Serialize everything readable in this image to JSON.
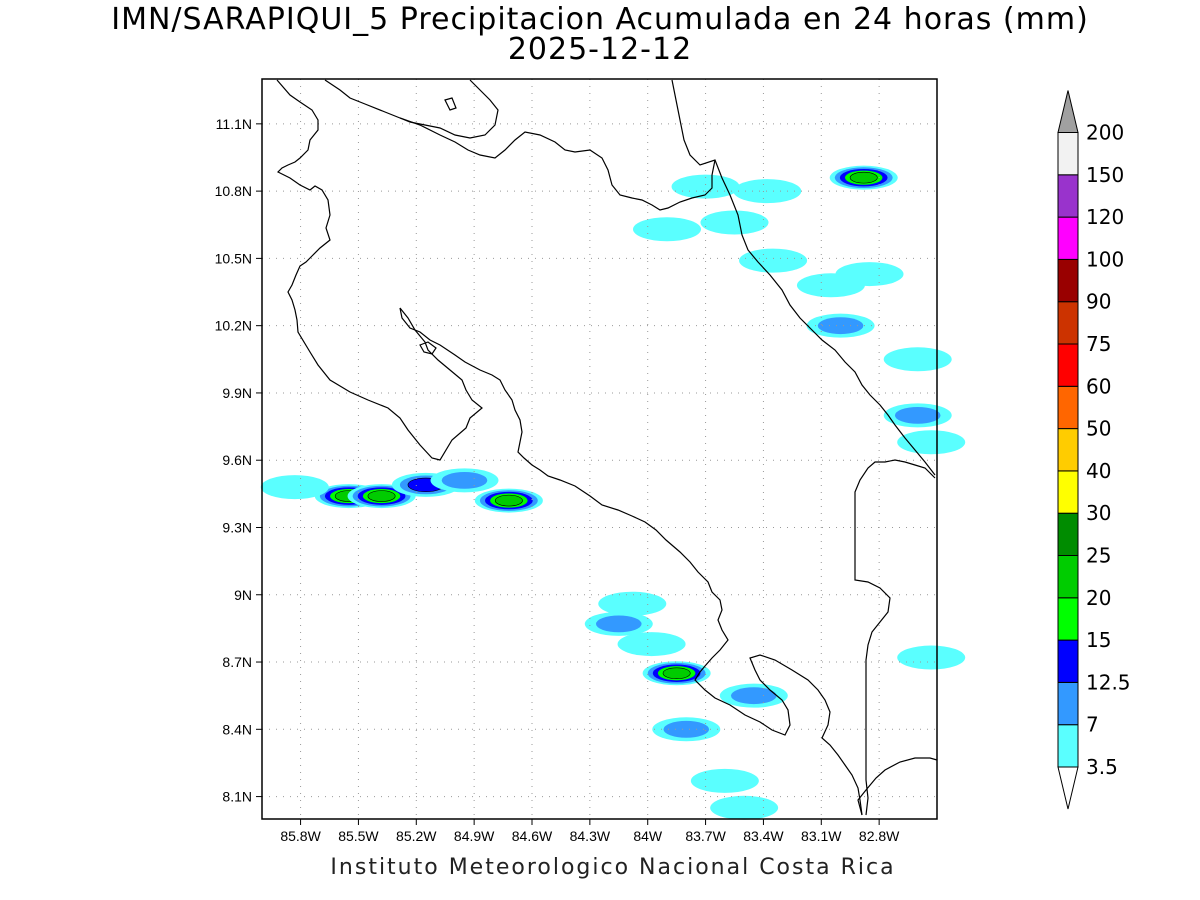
{
  "title": {
    "line1": "IMN/SARAPIQUI_5 Precipitacion Acumulada en 24 horas (mm)",
    "line2": "2025-12-12"
  },
  "footer": "Instituto Meteorologico Nacional Costa Rica",
  "map": {
    "lon_range": [
      -86.0,
      -82.5
    ],
    "lat_range": [
      8.0,
      11.3
    ],
    "lon_ticks": [
      {
        "value": -85.8,
        "label": "85.8W"
      },
      {
        "value": -85.5,
        "label": "85.5W"
      },
      {
        "value": -85.2,
        "label": "85.2W"
      },
      {
        "value": -84.9,
        "label": "84.9W"
      },
      {
        "value": -84.6,
        "label": "84.6W"
      },
      {
        "value": -84.3,
        "label": "84.3W"
      },
      {
        "value": -84.0,
        "label": "84W"
      },
      {
        "value": -83.7,
        "label": "83.7W"
      },
      {
        "value": -83.4,
        "label": "83.4W"
      },
      {
        "value": -83.1,
        "label": "83.1W"
      },
      {
        "value": -82.8,
        "label": "82.8W"
      }
    ],
    "lat_ticks": [
      {
        "value": 11.1,
        "label": "11.1N"
      },
      {
        "value": 10.8,
        "label": "10.8N"
      },
      {
        "value": 10.5,
        "label": "10.5N"
      },
      {
        "value": 10.2,
        "label": "10.2N"
      },
      {
        "value": 9.9,
        "label": "9.9N"
      },
      {
        "value": 9.6,
        "label": "9.6N"
      },
      {
        "value": 9.3,
        "label": "9.3N"
      },
      {
        "value": 9.0,
        "label": "9N"
      },
      {
        "value": 8.7,
        "label": "8.7N"
      },
      {
        "value": 8.4,
        "label": "8.4N"
      },
      {
        "value": 8.1,
        "label": "8.1N"
      }
    ],
    "grid": "dotted",
    "coastline_color": "#000000"
  },
  "colorbar": {
    "levels": [
      {
        "label": "3.5",
        "color": "#5affff"
      },
      {
        "label": "7",
        "color": "#3399ff"
      },
      {
        "label": "12.5",
        "color": "#0000ff"
      },
      {
        "label": "15",
        "color": "#00ff00"
      },
      {
        "label": "20",
        "color": "#00cc00"
      },
      {
        "label": "25",
        "color": "#008c00"
      },
      {
        "label": "30",
        "color": "#ffff00"
      },
      {
        "label": "40",
        "color": "#ffcc00"
      },
      {
        "label": "50",
        "color": "#ff6600"
      },
      {
        "label": "60",
        "color": "#ff0000"
      },
      {
        "label": "75",
        "color": "#cc3300"
      },
      {
        "label": "90",
        "color": "#990000"
      },
      {
        "label": "100",
        "color": "#ff00ff"
      },
      {
        "label": "120",
        "color": "#9933cc"
      },
      {
        "label": "150",
        "color": "#f2f2f2"
      },
      {
        "label": "200",
        "color": ""
      }
    ],
    "segment_colors_bottom_to_top": [
      "#5affff",
      "#3399ff",
      "#0000ff",
      "#00ff00",
      "#00cc00",
      "#008c00",
      "#ffff00",
      "#ffcc00",
      "#ff6600",
      "#ff0000",
      "#cc3300",
      "#990000",
      "#ff00ff",
      "#9933cc",
      "#f2f2f2"
    ],
    "upper_triangle_color": "#a0a0a0",
    "lower_triangle_color": "#ffffff"
  },
  "precip_cells": [
    {
      "lon": -85.55,
      "lat": 9.44,
      "mm": 20
    },
    {
      "lon": -85.38,
      "lat": 9.44,
      "mm": 20
    },
    {
      "lon": -85.15,
      "lat": 9.49,
      "mm": 12.5
    },
    {
      "lon": -84.72,
      "lat": 9.42,
      "mm": 20
    },
    {
      "lon": -85.83,
      "lat": 9.48,
      "mm": 3.5
    },
    {
      "lon": -84.95,
      "lat": 9.51,
      "mm": 7
    },
    {
      "lon": -82.88,
      "lat": 10.86,
      "mm": 20
    },
    {
      "lon": -83.7,
      "lat": 10.82,
      "mm": 3.5
    },
    {
      "lon": -83.9,
      "lat": 10.63,
      "mm": 3.5
    },
    {
      "lon": -83.38,
      "lat": 10.8,
      "mm": 3.5
    },
    {
      "lon": -83.55,
      "lat": 10.66,
      "mm": 3.5
    },
    {
      "lon": -83.35,
      "lat": 10.49,
      "mm": 3.5
    },
    {
      "lon": -83.05,
      "lat": 10.38,
      "mm": 3.5
    },
    {
      "lon": -82.85,
      "lat": 10.43,
      "mm": 3.5
    },
    {
      "lon": -83.0,
      "lat": 10.2,
      "mm": 7
    },
    {
      "lon": -82.6,
      "lat": 10.05,
      "mm": 3.5
    },
    {
      "lon": -82.6,
      "lat": 9.8,
      "mm": 7
    },
    {
      "lon": -83.85,
      "lat": 8.65,
      "mm": 20
    },
    {
      "lon": -83.8,
      "lat": 8.4,
      "mm": 7
    },
    {
      "lon": -84.15,
      "lat": 8.87,
      "mm": 7
    },
    {
      "lon": -83.98,
      "lat": 8.78,
      "mm": 3.5
    },
    {
      "lon": -83.45,
      "lat": 8.55,
      "mm": 7
    },
    {
      "lon": -83.6,
      "lat": 8.17,
      "mm": 3.5
    },
    {
      "lon": -83.5,
      "lat": 8.05,
      "mm": 3.5
    },
    {
      "lon": -84.08,
      "lat": 8.96,
      "mm": 3.5
    },
    {
      "lon": -82.53,
      "lat": 8.72,
      "mm": 3.5
    },
    {
      "lon": -82.53,
      "lat": 9.68,
      "mm": 3.5
    }
  ]
}
